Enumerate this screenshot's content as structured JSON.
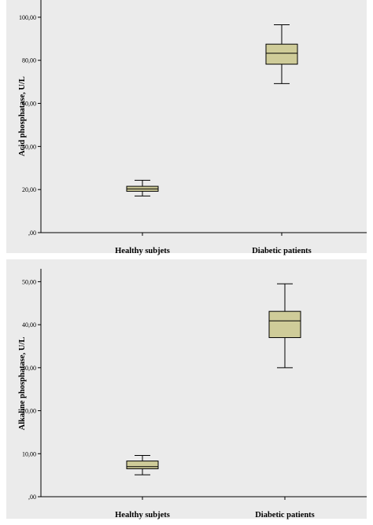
{
  "chart_data": [
    {
      "type": "boxplot",
      "title": "",
      "xlabel": "",
      "ylabel": "Acid phosphatase, U/L",
      "ylim": [
        0,
        108
      ],
      "yticks": [
        0,
        20,
        40,
        60,
        80,
        100
      ],
      "ytick_labels": [
        ",00",
        "20,00",
        "40,00",
        "60,00",
        "80,00",
        "100,00"
      ],
      "categories": [
        "Healthy subjets",
        "Diabetic patients"
      ],
      "boxes": [
        {
          "whisker_low": 17,
          "q1": 19.2,
          "median": 20.3,
          "q3": 21.5,
          "whisker_high": 24.3
        },
        {
          "whisker_low": 69.2,
          "q1": 78.2,
          "median": 83.3,
          "q3": 87.5,
          "whisker_high": 96.5
        }
      ],
      "grid": false,
      "box_color": "#cfcc99",
      "plot_background": "#ebebeb"
    },
    {
      "type": "boxplot",
      "title": "",
      "xlabel": "",
      "ylabel": "Alkaline phosphatase, U/L",
      "ylim": [
        0,
        53
      ],
      "yticks": [
        0,
        10,
        20,
        30,
        40,
        50
      ],
      "ytick_labels": [
        ",00",
        "10,00",
        "20,00",
        "30,00",
        "40,00",
        "50,00"
      ],
      "categories": [
        "Healthy subjets",
        "Diabetic patients"
      ],
      "boxes": [
        {
          "whisker_low": 5.1,
          "q1": 6.5,
          "median": 7.0,
          "q3": 8.3,
          "whisker_high": 9.6
        },
        {
          "whisker_low": 30.0,
          "q1": 37.0,
          "median": 40.9,
          "q3": 43.1,
          "whisker_high": 49.5
        }
      ],
      "grid": false,
      "box_color": "#cfcc99",
      "plot_background": "#ebebeb"
    }
  ]
}
